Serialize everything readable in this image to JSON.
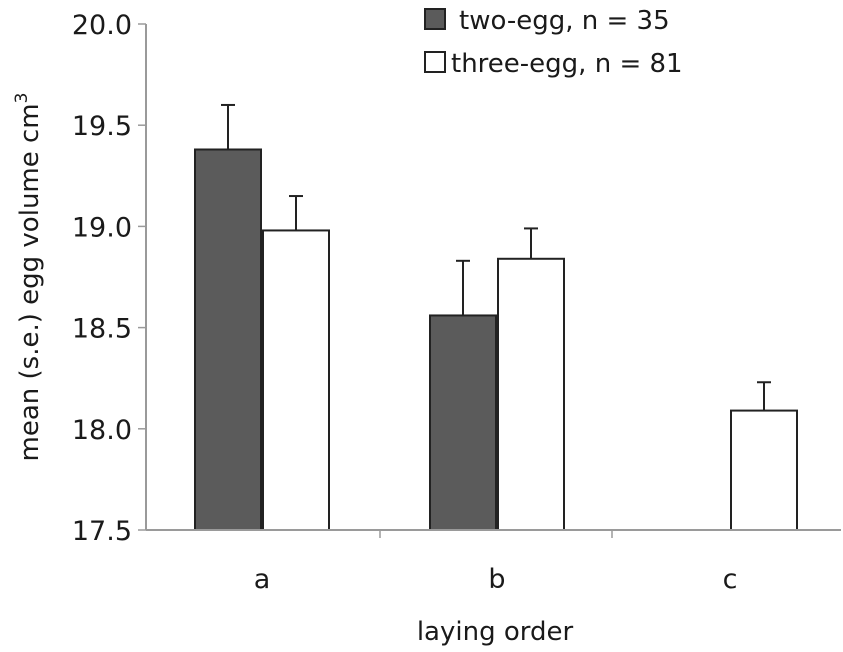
{
  "chart_data": {
    "type": "bar",
    "categories": [
      "a",
      "b",
      "c"
    ],
    "series": [
      {
        "name": "two-egg, n = 35",
        "color": "#5b5b5b",
        "values": [
          19.38,
          18.56,
          null
        ],
        "errors": [
          0.22,
          0.27,
          null
        ]
      },
      {
        "name": "three-egg, n = 81",
        "color": "#ffffff",
        "values": [
          18.98,
          18.84,
          18.09
        ],
        "errors": [
          0.17,
          0.15,
          0.14
        ]
      }
    ],
    "xlabel": "laying order",
    "ylabel": "mean (s.e.) egg volume cm",
    "ylabel_superscript": "3",
    "ylim": [
      17.5,
      20.0
    ],
    "yticks": [
      "17.5",
      "18.0",
      "18.5",
      "19.0",
      "19.5",
      "20.0"
    ],
    "legend_position": "top-right",
    "grid": false
  }
}
